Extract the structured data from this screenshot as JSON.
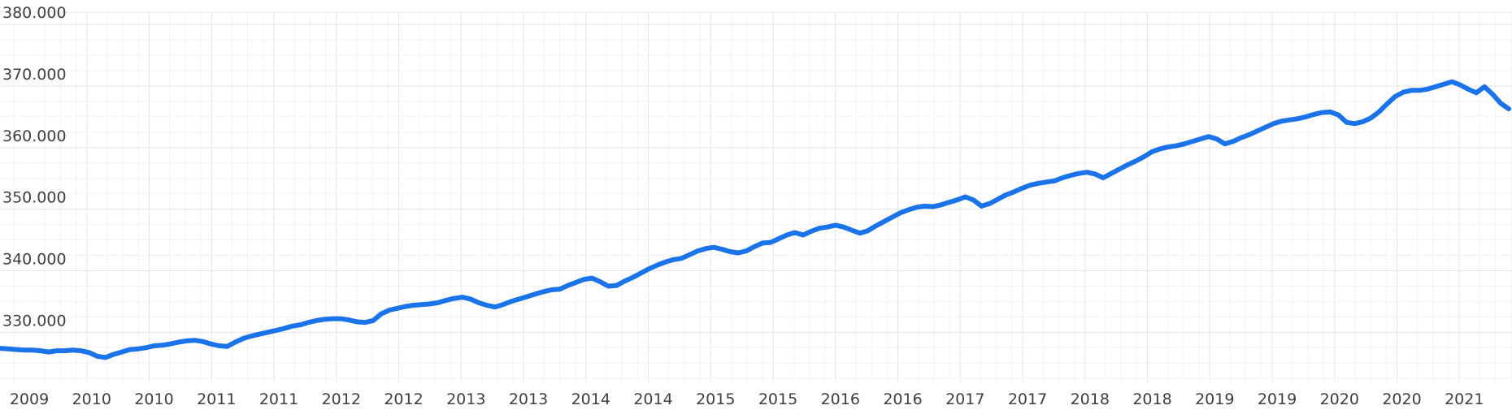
{
  "chart_data": {
    "type": "line",
    "title": "",
    "xlabel": "",
    "ylabel": "",
    "ylim": [
      322000,
      382000
    ],
    "y_ticks": [
      330000,
      340000,
      350000,
      360000,
      370000,
      380000
    ],
    "y_tick_labels": [
      "330.000",
      "340.000",
      "350.000",
      "360.000",
      "370.000",
      "380.000"
    ],
    "x_tick_labels": [
      "2009",
      "2010",
      "2010",
      "2011",
      "2011",
      "2012",
      "2012",
      "2013",
      "2013",
      "2014",
      "2014",
      "2015",
      "2015",
      "2016",
      "2016",
      "2017",
      "2017",
      "2018",
      "2018",
      "2019",
      "2019",
      "2020",
      "2020",
      "2021"
    ],
    "grid": true,
    "legend": "none",
    "line_color": "#1a73e8",
    "series": [
      {
        "values": [
          327400,
          327300,
          327200,
          327100,
          327100,
          327000,
          326800,
          327000,
          327000,
          327100,
          327000,
          326700,
          326100,
          325900,
          326400,
          326800,
          327200,
          327300,
          327500,
          327800,
          327900,
          328100,
          328400,
          328600,
          328700,
          328500,
          328100,
          327800,
          327700,
          328400,
          329000,
          329400,
          329700,
          330000,
          330300,
          330600,
          331000,
          331200,
          331600,
          331900,
          332100,
          332200,
          332200,
          332000,
          331700,
          331600,
          331900,
          333000,
          333600,
          333900,
          334200,
          334400,
          334500,
          334600,
          334800,
          335200,
          335500,
          335700,
          335400,
          334800,
          334400,
          334100,
          334500,
          335000,
          335400,
          335800,
          336200,
          336600,
          336900,
          337000,
          337600,
          338100,
          338600,
          338800,
          338200,
          337500,
          337600,
          338300,
          338900,
          339600,
          340300,
          340900,
          341400,
          341800,
          342000,
          342600,
          343200,
          343600,
          343800,
          343500,
          343100,
          342900,
          343200,
          343900,
          344500,
          344600,
          345200,
          345800,
          346200,
          345800,
          346400,
          346900,
          347100,
          347400,
          347100,
          346600,
          346100,
          346500,
          347300,
          348000,
          348700,
          349400,
          349900,
          350300,
          350500,
          350400,
          350700,
          351100,
          351500,
          352000,
          351500,
          350500,
          350900,
          351600,
          352300,
          352800,
          353400,
          353900,
          354200,
          354400,
          354600,
          355100,
          355500,
          355800,
          356000,
          355700,
          355100,
          355800,
          356500,
          357200,
          357800,
          358500,
          359300,
          359800,
          360100,
          360300,
          360600,
          361000,
          361400,
          361800,
          361400,
          360600,
          361000,
          361600,
          362100,
          362700,
          363300,
          363900,
          364300,
          364500,
          364700,
          365000,
          365400,
          365700,
          365800,
          365300,
          364100,
          363900,
          364200,
          364800,
          365800,
          367100,
          368300,
          369000,
          369300,
          369300,
          369500,
          369900,
          370300,
          370700,
          370200,
          369500,
          368900,
          369900,
          368700,
          367200,
          366300
        ]
      }
    ]
  }
}
